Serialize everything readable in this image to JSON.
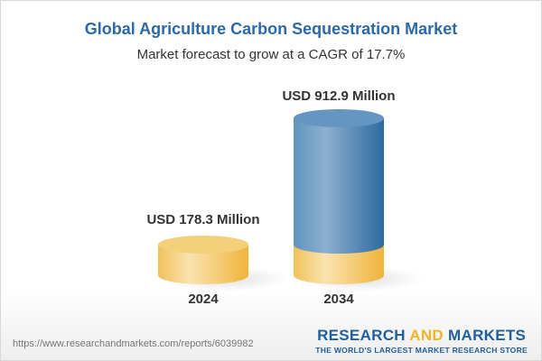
{
  "title": "Global Agriculture Carbon Sequestration Market",
  "subtitle": "Market forecast to grow at a CAGR of 17.7%",
  "chart_data": {
    "type": "bar",
    "style": "3d-cylinder",
    "categories": [
      "2024",
      "2034"
    ],
    "values": [
      178.3,
      912.9
    ],
    "data_labels": [
      "USD 178.3 Million",
      "USD 912.9 Million"
    ],
    "colors": {
      "base": "#f3c75e",
      "growth": "#3d7ab0"
    },
    "title": "Global Agriculture Carbon Sequestration Market",
    "xlabel": "",
    "ylabel": ""
  },
  "footer": {
    "url": "https://www.researchandmarkets.com/reports/6039982",
    "logo_part1": "RESEARCH ",
    "logo_part2": "AND",
    "logo_part3": " MARKETS",
    "tagline": "THE WORLD'S LARGEST MARKET RESEARCH STORE"
  }
}
